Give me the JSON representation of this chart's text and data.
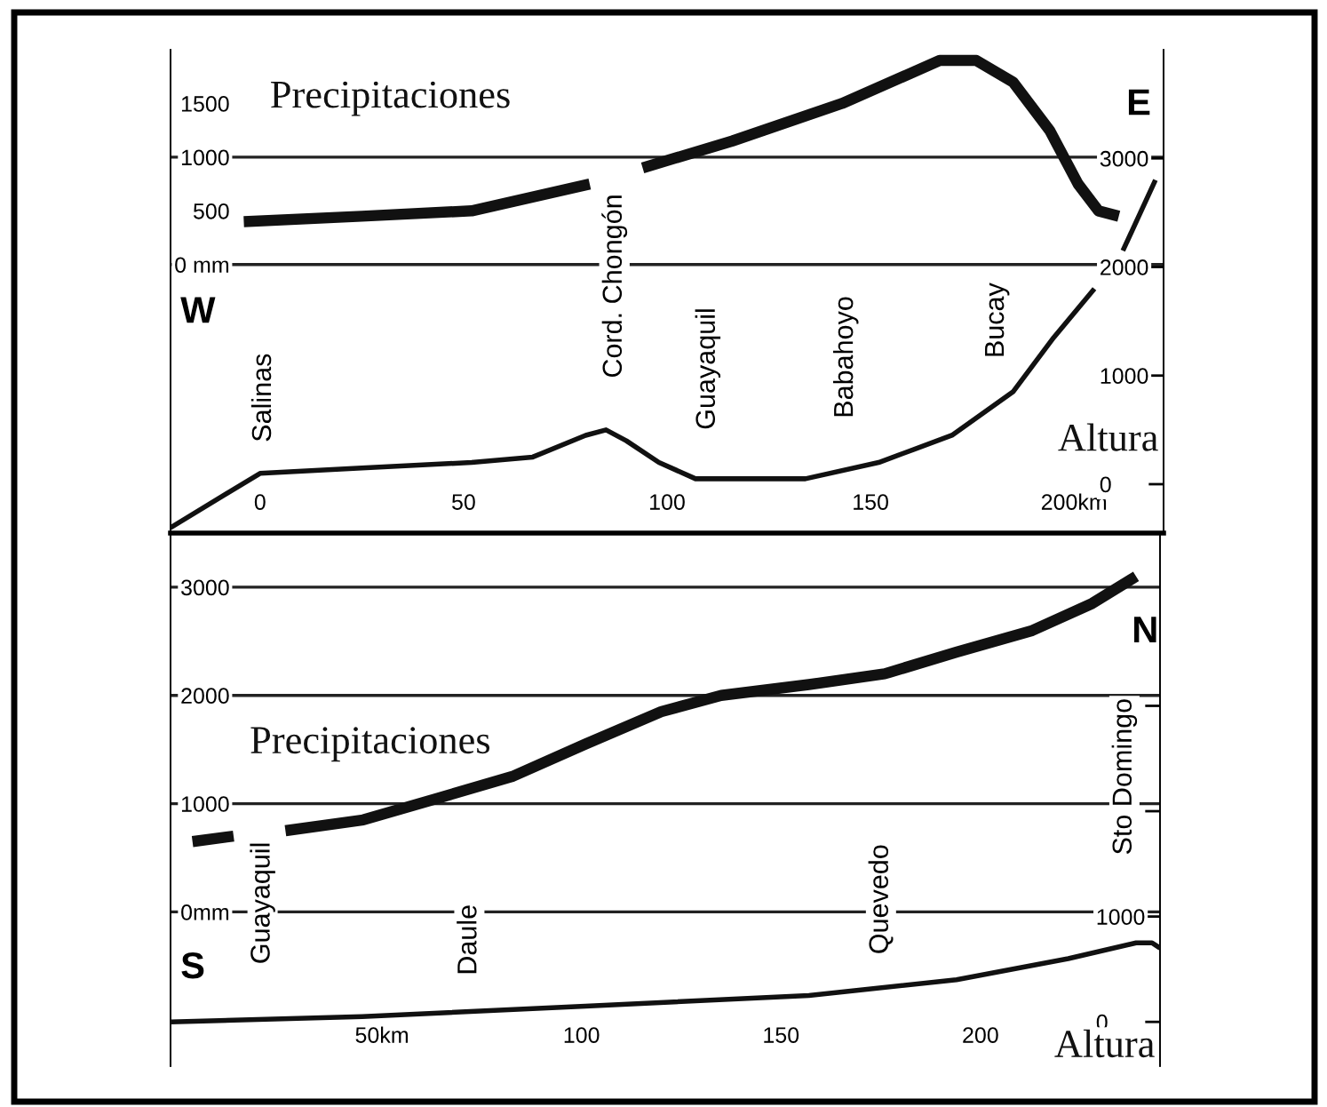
{
  "chart_data": [
    {
      "type": "line",
      "xlim": [
        -22,
        222
      ],
      "ylim": [
        -2500,
        2000
      ],
      "y2lim": [
        -450,
        4000
      ],
      "xticks": [
        0,
        50,
        100,
        150,
        {
          "value": 200,
          "label": "200km"
        }
      ],
      "yticks": [
        {
          "value": 0,
          "label": "0 mm"
        },
        500,
        1000,
        1500
      ],
      "y2ticks": [
        0,
        1000,
        2000,
        3000
      ],
      "series": [
        {
          "name": "Precipitaciones",
          "color": "#111111",
          "x": [
            -4,
            25,
            52,
            81,
            88,
            94,
            116,
            143,
            167,
            176,
            185,
            194,
            201,
            206,
            211
          ],
          "values": [
            400,
            450,
            500,
            750,
            null,
            900,
            1150,
            1500,
            1900,
            1900,
            1700,
            1250,
            750,
            500,
            450
          ]
        },
        {
          "name": "Altura",
          "color": "#111111",
          "axis": "y2",
          "x": [
            -22,
            0,
            25,
            52,
            67,
            80,
            85,
            90,
            98,
            107,
            116,
            134,
            152,
            170,
            185,
            195,
            205,
            208,
            212,
            220
          ],
          "values": [
            -400,
            100,
            150,
            200,
            250,
            450,
            500,
            400,
            200,
            50,
            50,
            50,
            200,
            450,
            850,
            1350,
            1800,
            null,
            2150,
            2800
          ]
        }
      ],
      "ref_lines": [
        {
          "axis": "y",
          "value": 0,
          "color": "#222222"
        },
        {
          "axis": "y",
          "value": 1000,
          "color": "#222222"
        }
      ],
      "annotations": [
        "W",
        "E",
        "Salinas",
        "Cord. Chongón",
        "Guayaquil",
        "Babahoyo",
        "Bucay"
      ],
      "legend": false,
      "grid": false,
      "marker": "none",
      "line_style": "solid"
    },
    {
      "type": "line",
      "xlim": [
        -3,
        245
      ],
      "ylim": [
        -1425,
        3500
      ],
      "y2lim": [
        -420,
        4640
      ],
      "xticks": [
        {
          "value": 50,
          "label": "50km"
        },
        100,
        150,
        200
      ],
      "yticks": [
        {
          "value": 0,
          "label": "0mm"
        },
        1000,
        2000,
        3000
      ],
      "y2ticks": [
        0,
        1000,
        {
          "value": 2000,
          "label": null
        },
        {
          "value": 3000,
          "label": null
        }
      ],
      "series": [
        {
          "name": "Precipitaciones",
          "color": "#111111",
          "x": [
            2.5,
            12.8,
            19,
            25.8,
            45.3,
            64,
            82.6,
            101,
            120,
            135,
            157,
            176,
            194,
            213,
            228,
            239
          ],
          "values": [
            650,
            700,
            null,
            750,
            850,
            1050,
            1250,
            1550,
            1850,
            2000,
            2100,
            2200,
            2400,
            2600,
            2850,
            3100
          ]
        },
        {
          "name": "Altura",
          "color": "#111111",
          "axis": "y2",
          "x": [
            -3,
            45,
            101,
            157,
            194,
            222,
            239,
            243,
            245
          ],
          "values": [
            0,
            50,
            150,
            250,
            400,
            600,
            750,
            750,
            700
          ]
        }
      ],
      "ref_lines": [
        {
          "axis": "y",
          "value": 0,
          "color": "#222222"
        },
        {
          "axis": "y",
          "value": 1000,
          "color": "#222222"
        },
        {
          "axis": "y",
          "value": 2000,
          "color": "#222222"
        },
        {
          "axis": "y",
          "value": 3000,
          "color": "#222222"
        }
      ],
      "annotations": [
        "S",
        "N",
        "Guayaquil",
        "Daule",
        "Quevedo",
        "Sto Domingo"
      ],
      "legend": false,
      "grid": false,
      "marker": "none",
      "line_style": "solid"
    }
  ]
}
